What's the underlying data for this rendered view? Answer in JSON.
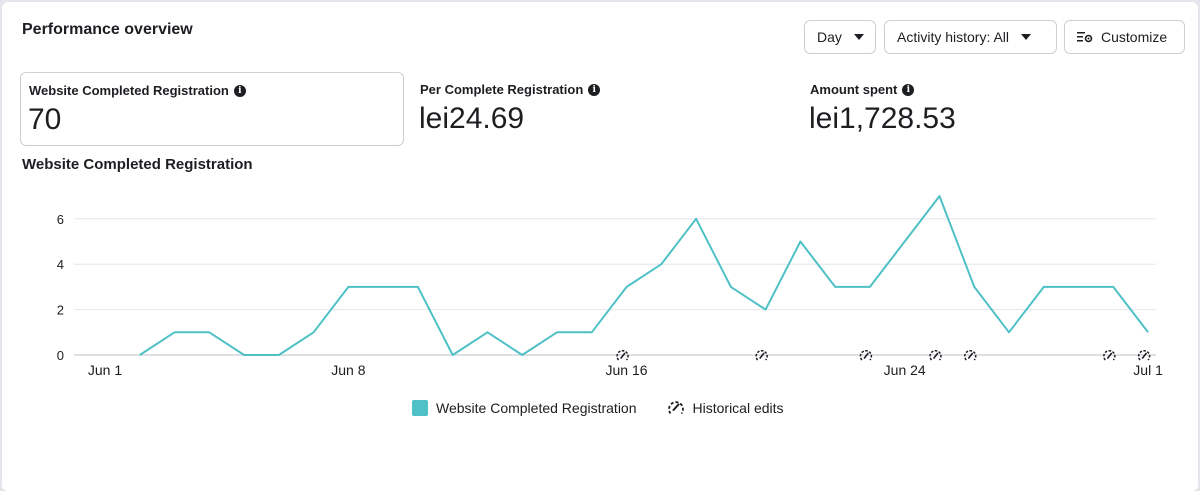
{
  "header": {
    "title": "Performance overview",
    "day_label": "Day",
    "activity_label": "Activity history: All",
    "customize_label": "Customize"
  },
  "metrics": [
    {
      "label": "Website Completed Registration",
      "value": "70"
    },
    {
      "label": "Per Complete Registration",
      "value": "lei24.69"
    },
    {
      "label": "Amount spent",
      "value": "lei1,728.53"
    }
  ],
  "colors": {
    "series": "#4fc1c6",
    "grid": "#e4e6eb"
  },
  "chart_data": {
    "type": "line",
    "title": "Website Completed Registration",
    "x": [
      "Jun 1",
      "Jun 2",
      "Jun 3",
      "Jun 4",
      "Jun 5",
      "Jun 6",
      "Jun 7",
      "Jun 8",
      "Jun 9",
      "Jun 10",
      "Jun 11",
      "Jun 12",
      "Jun 13",
      "Jun 14",
      "Jun 15",
      "Jun 16",
      "Jun 17",
      "Jun 18",
      "Jun 19",
      "Jun 20",
      "Jun 21",
      "Jun 22",
      "Jun 23",
      "Jun 24",
      "Jun 25",
      "Jun 26",
      "Jun 27",
      "Jun 28",
      "Jun 29",
      "Jun 30",
      "Jul 1"
    ],
    "x_ticks": [
      "Jun 1",
      "Jun 8",
      "Jun 16",
      "Jun 24",
      "Jul 1"
    ],
    "series": [
      {
        "name": "Website Completed Registration",
        "values": [
          null,
          0,
          1,
          1,
          0,
          0,
          1,
          3,
          3,
          3,
          0,
          1,
          0,
          1,
          1,
          3,
          4,
          6,
          3,
          2,
          5,
          3,
          3,
          5,
          7,
          3,
          1,
          3,
          3,
          3,
          1
        ]
      }
    ],
    "y_ticks": [
      0,
      2,
      4,
      6
    ],
    "ylim": [
      0,
      7
    ],
    "grid": true,
    "historical_edits": [
      "Jun 16",
      "Jun 20",
      "Jun 23",
      "Jun 25",
      "Jun 26",
      "Jun 30",
      "Jul 1"
    ],
    "legend": [
      "Website Completed Registration",
      "Historical edits"
    ],
    "legend_position": "bottom"
  }
}
